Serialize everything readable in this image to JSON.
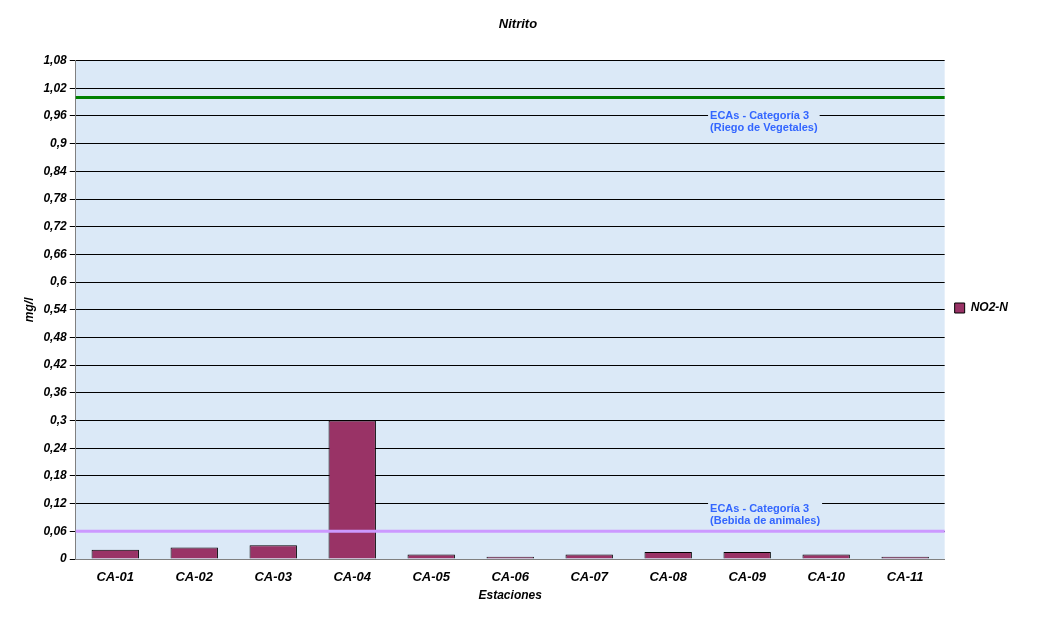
{
  "chart_data": {
    "type": "bar",
    "title": "Nitrito",
    "xlabel": "Estaciones",
    "ylabel": "mg/l",
    "categories": [
      "CA-01",
      "CA-02",
      "CA-03",
      "CA-04",
      "CA-05",
      "CA-06",
      "CA-07",
      "CA-08",
      "CA-09",
      "CA-10",
      "CA-11"
    ],
    "series": [
      {
        "name": "NO2-N",
        "color": "#993366",
        "values": [
          0.02,
          0.025,
          0.03,
          0.3,
          0.01,
          0.005,
          0.01,
          0.015,
          0.015,
          0.01,
          0.005
        ]
      }
    ],
    "ylim": [
      0,
      1.08
    ],
    "yticks": [
      0,
      {
        "value": 0.06,
        "label": "0,06"
      },
      {
        "value": 0.12,
        "label": "0,12"
      },
      {
        "value": 0.18,
        "label": "0,18"
      },
      {
        "value": 0.24,
        "label": "0,24"
      },
      {
        "value": 0.3,
        "label": "0,3"
      },
      {
        "value": 0.36,
        "label": "0,36"
      },
      {
        "value": 0.42,
        "label": "0,42"
      },
      {
        "value": 0.48,
        "label": "0,48"
      },
      {
        "value": 0.54,
        "label": "0,54"
      },
      {
        "value": 0.6,
        "label": "0,6"
      },
      {
        "value": 0.66,
        "label": "0,66"
      },
      {
        "value": 0.72,
        "label": "0,72"
      },
      {
        "value": 0.78,
        "label": "0,78"
      },
      {
        "value": 0.84,
        "label": "0,84"
      },
      {
        "value": 0.9,
        "label": "0,9"
      },
      {
        "value": 0.96,
        "label": "0,96"
      },
      {
        "value": 1.02,
        "label": "1,02"
      },
      {
        "value": 1.08,
        "label": "1,08"
      }
    ],
    "ref_lines": [
      {
        "axis": "y",
        "value": 1,
        "label": "ECAs - Categoría 3\n(Riego de Vegetales)",
        "color": "#008000"
      },
      {
        "axis": "y",
        "value": 0.06,
        "label": "ECAs - Categoría 3\n(Bebida de animales)",
        "color": "#cc99ff"
      }
    ],
    "grid": "y",
    "legend": "right"
  }
}
